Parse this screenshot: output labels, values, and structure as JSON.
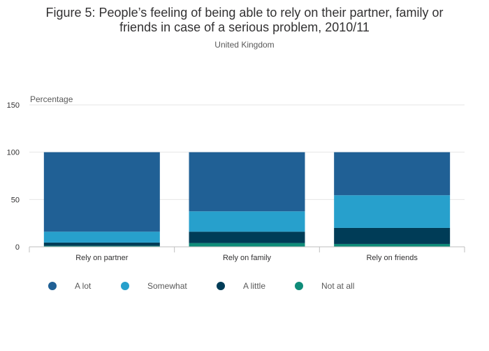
{
  "chart_data": {
    "type": "bar",
    "stacked": true,
    "title_lines": [
      "Figure 5: People’s feeling of being able to rely on their partner, family or",
      "friends in case of a serious problem, 2010/11"
    ],
    "subtitle": "United Kingdom",
    "ylabel": "Percentage",
    "xlabel": "",
    "ylim": [
      0,
      150
    ],
    "yticks": [
      0,
      50,
      100,
      150
    ],
    "categories": [
      "Rely on partner",
      "Rely on family",
      "Rely on friends"
    ],
    "series": [
      {
        "name": "Not at all",
        "color": "#0f8c79",
        "values": [
          1,
          4,
          3
        ]
      },
      {
        "name": "A little",
        "color": "#003c57",
        "values": [
          3.5,
          12,
          17
        ]
      },
      {
        "name": "Somewhat",
        "color": "#27a0cc",
        "values": [
          11.5,
          21.5,
          34.5
        ]
      },
      {
        "name": "A lot",
        "color": "#206095",
        "values": [
          84,
          62.5,
          45.5
        ]
      }
    ],
    "legend": [
      "A lot",
      "Somewhat",
      "A little",
      "Not at all"
    ],
    "grid": true,
    "legend_position": "bottom"
  }
}
